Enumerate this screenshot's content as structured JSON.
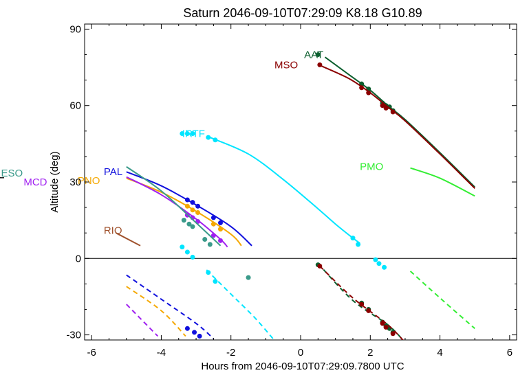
{
  "chart_data": {
    "type": "line",
    "title": "Saturn 2046-09-10T07:29:09  K8.18  G10.89",
    "xlabel": "Hours from 2046-09-10T07:29:09.7800 UTC",
    "ylabel": "Altitude (deg)",
    "xlim": [
      -6.2,
      6.2
    ],
    "ylim": [
      -32,
      92
    ],
    "x_ticks": [
      -6,
      -4,
      -2,
      0,
      2,
      4,
      6
    ],
    "x_tick_labels": [
      "-6",
      "-4",
      "-2",
      "0",
      "2",
      "4",
      "6"
    ],
    "y_ticks": [
      -30,
      0,
      30,
      60,
      90
    ],
    "y_tick_labels": [
      "-30",
      "0",
      "30",
      "60",
      "90"
    ],
    "grid": false,
    "zero_line": 0,
    "series": [
      {
        "name": "AAT",
        "color": "#0b5e2e",
        "label_at": [
          0.1,
          80
        ],
        "solid": [
          [
            0.7,
            79
          ],
          [
            1.4,
            72
          ],
          [
            2.0,
            66
          ],
          [
            2.5,
            60
          ],
          [
            3.0,
            54.5
          ],
          [
            4.0,
            41.5
          ],
          [
            5.0,
            28
          ]
        ],
        "dashed": [
          [
            0.5,
            -2
          ],
          [
            1.5,
            -16.5
          ],
          [
            2.5,
            -26
          ],
          [
            3.0,
            -33
          ]
        ],
        "points": [
          [
            0.5,
            80
          ],
          [
            1.75,
            68.5
          ],
          [
            1.95,
            66.5
          ],
          [
            2.35,
            61
          ],
          [
            2.45,
            60
          ],
          [
            2.55,
            59.5
          ],
          [
            2.65,
            58
          ],
          [
            0.5,
            -2.5
          ],
          [
            1.75,
            -17.5
          ],
          [
            1.95,
            -20
          ],
          [
            2.35,
            -25
          ],
          [
            2.45,
            -26.5
          ],
          [
            2.55,
            -27.5
          ],
          [
            2.65,
            -29
          ]
        ]
      },
      {
        "name": "MSO",
        "color": "#8b0000",
        "label_at": [
          -0.75,
          76
        ],
        "solid": [
          [
            0.6,
            75.5
          ],
          [
            1.4,
            70.5
          ],
          [
            2.0,
            65
          ],
          [
            2.5,
            59.5
          ],
          [
            3.0,
            54
          ],
          [
            4.0,
            41
          ],
          [
            5.0,
            27.5
          ]
        ],
        "dashed": [
          [
            0.55,
            -3
          ],
          [
            1.5,
            -15.5
          ],
          [
            2.5,
            -26
          ],
          [
            3.0,
            -33
          ]
        ],
        "points": [
          [
            0.55,
            76
          ],
          [
            1.75,
            67
          ],
          [
            1.95,
            65
          ],
          [
            2.35,
            60
          ],
          [
            2.45,
            59
          ],
          [
            2.65,
            57.5
          ],
          [
            0.55,
            -3
          ],
          [
            1.75,
            -18
          ],
          [
            1.95,
            -20.5
          ],
          [
            2.35,
            -25.5
          ],
          [
            2.45,
            -27
          ],
          [
            2.65,
            -29.5
          ]
        ]
      },
      {
        "name": "IRTF",
        "color": "#00e5ff",
        "label_at": [
          -3.4,
          49
        ],
        "solid": [
          [
            -2.6,
            47.5
          ],
          [
            -1.5,
            41
          ],
          [
            -0.5,
            31
          ],
          [
            0.5,
            19.5
          ],
          [
            1.0,
            13.5
          ],
          [
            1.5,
            8
          ],
          [
            1.7,
            6
          ]
        ],
        "dashed": [
          [
            -2.7,
            -4.5
          ],
          [
            -2.0,
            -14
          ],
          [
            -1.3,
            -23.5
          ],
          [
            -0.7,
            -33
          ]
        ],
        "points": [
          [
            -3.4,
            49
          ],
          [
            -3.25,
            49
          ],
          [
            -3.1,
            49
          ],
          [
            -2.65,
            47.5
          ],
          [
            -2.45,
            46.5
          ],
          [
            1.5,
            8
          ],
          [
            1.65,
            5.5
          ],
          [
            -3.4,
            4.5
          ],
          [
            -3.25,
            2.5
          ],
          [
            -3.1,
            0.5
          ],
          [
            2.15,
            -0.5
          ],
          [
            2.25,
            -2
          ],
          [
            2.4,
            -3.5
          ],
          [
            -2.65,
            -5.5
          ],
          [
            -2.45,
            -9
          ]
        ]
      },
      {
        "name": "PMO",
        "color": "#33ee33",
        "label_at": [
          1.7,
          36
        ],
        "solid": [
          [
            3.15,
            35.5
          ],
          [
            4.0,
            31.5
          ],
          [
            5.0,
            24.5
          ]
        ],
        "dashed": [
          [
            3.15,
            -5
          ],
          [
            4.0,
            -15.5
          ],
          [
            5.0,
            -27.5
          ]
        ],
        "points": []
      },
      {
        "name": "PAL",
        "color": "#1010dd",
        "label_at": [
          -5.65,
          34
        ],
        "solid": [
          [
            -5.0,
            34
          ],
          [
            -4.0,
            28.5
          ],
          [
            -3.0,
            21
          ],
          [
            -2.0,
            12.5
          ],
          [
            -1.4,
            5
          ]
        ],
        "dashed": [
          [
            -5.0,
            -6.5
          ],
          [
            -4.0,
            -16
          ],
          [
            -3.0,
            -25.5
          ],
          [
            -2.5,
            -31.5
          ]
        ],
        "points": [
          [
            -3.25,
            23
          ],
          [
            -3.1,
            22
          ],
          [
            -2.95,
            20.5
          ],
          [
            -2.5,
            16
          ],
          [
            -2.3,
            14
          ],
          [
            -3.25,
            -27.5
          ],
          [
            -3.05,
            -29
          ],
          [
            -2.9,
            -30.5
          ]
        ]
      },
      {
        "name": "PNO",
        "color": "#f5a800",
        "label_at": [
          -6.4,
          30.5
        ],
        "solid": [
          [
            -5.0,
            31.5
          ],
          [
            -4.0,
            26
          ],
          [
            -3.0,
            18.5
          ],
          [
            -2.0,
            9.5
          ],
          [
            -1.7,
            5
          ]
        ],
        "dashed": [
          [
            -5.0,
            -11
          ],
          [
            -4.0,
            -20.5
          ],
          [
            -3.3,
            -30.5
          ]
        ],
        "points": [
          [
            -3.25,
            20.5
          ],
          [
            -3.1,
            19
          ],
          [
            -2.95,
            18
          ],
          [
            -2.5,
            13.5
          ],
          [
            -2.3,
            11.5
          ],
          [
            -3.25,
            -33
          ]
        ]
      },
      {
        "name": "MCD",
        "color": "#a020f0",
        "label_at": [
          -7.95,
          30
        ],
        "solid": [
          [
            -5.0,
            32
          ],
          [
            -4.0,
            25
          ],
          [
            -3.0,
            15.5
          ],
          [
            -2.3,
            7.5
          ],
          [
            -2.1,
            4.5
          ]
        ],
        "dashed": [
          [
            -5.0,
            -18
          ],
          [
            -4.1,
            -30.5
          ]
        ],
        "points": [
          [
            -3.25,
            17
          ],
          [
            -3.1,
            16
          ],
          [
            -2.95,
            14.5
          ],
          [
            -2.5,
            9
          ],
          [
            -2.3,
            7
          ]
        ]
      },
      {
        "name": "ESO",
        "color": "#3a9a8a",
        "label_at": [
          -8.6,
          33.5
        ],
        "solid": [
          [
            -5.0,
            36
          ],
          [
            -4.0,
            26.5
          ],
          [
            -3.0,
            14
          ],
          [
            -2.3,
            5
          ]
        ],
        "dashed": [],
        "points": [
          [
            -3.35,
            15
          ],
          [
            -3.2,
            13.5
          ],
          [
            -3.1,
            12.5
          ],
          [
            -2.75,
            7.5
          ],
          [
            -2.6,
            5.5
          ],
          [
            -1.5,
            -7.5
          ]
        ]
      },
      {
        "name": "RIO",
        "color": "#a0522d",
        "label_at": [
          -5.65,
          11
        ],
        "solid": [
          [
            -5.3,
            10
          ],
          [
            -4.6,
            5
          ]
        ],
        "dashed": [],
        "points": []
      }
    ]
  }
}
